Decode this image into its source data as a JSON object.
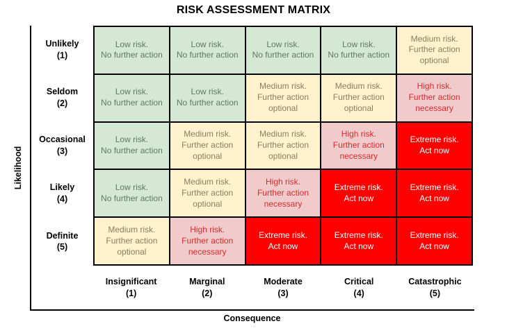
{
  "title": "RISK ASSESSMENT MATRIX",
  "axes": {
    "y_label": "Likelihood",
    "x_label": "Consequence"
  },
  "rows": [
    {
      "label": "Unlikely",
      "level": "(1)"
    },
    {
      "label": "Seldom",
      "level": "(2)"
    },
    {
      "label": "Occasional",
      "level": "(3)"
    },
    {
      "label": "Likely",
      "level": "(4)"
    },
    {
      "label": "Definite",
      "level": "(5)"
    }
  ],
  "columns": [
    {
      "label": "Insignificant",
      "level": "(1)"
    },
    {
      "label": "Marginal",
      "level": "(2)"
    },
    {
      "label": "Moderate",
      "level": "(3)"
    },
    {
      "label": "Critical",
      "level": "(4)"
    },
    {
      "label": "Catastrophic",
      "level": "(5)"
    }
  ],
  "risk_levels": {
    "low": {
      "text": "Low risk.\nNo further action",
      "bg": "#d5e8d4",
      "text_color": "#5e7a5e"
    },
    "medium": {
      "text": "Medium risk.\nFurther action\noptional",
      "bg": "#fff2cc",
      "text_color": "#8a7d62"
    },
    "high": {
      "text": "High risk.\nFurther action\nnecessary",
      "bg": "#f1cbcb",
      "text_color": "#d22c2c"
    },
    "extreme": {
      "text": "Extreme risk.\nAct now",
      "bg": "#fe0000",
      "text_color": "#ffffff"
    }
  },
  "matrix": [
    [
      "low",
      "low",
      "low",
      "low",
      "medium"
    ],
    [
      "low",
      "low",
      "medium",
      "medium",
      "high"
    ],
    [
      "low",
      "medium",
      "medium",
      "high",
      "extreme"
    ],
    [
      "low",
      "medium",
      "high",
      "extreme",
      "extreme"
    ],
    [
      "medium",
      "high",
      "extreme",
      "extreme",
      "extreme"
    ]
  ],
  "chart_data": {
    "type": "heatmap",
    "title": "RISK ASSESSMENT MATRIX",
    "xlabel": "Consequence",
    "ylabel": "Likelihood",
    "x_categories": [
      "Insignificant (1)",
      "Marginal (2)",
      "Moderate (3)",
      "Critical (4)",
      "Catastrophic (5)"
    ],
    "y_categories": [
      "Unlikely (1)",
      "Seldom (2)",
      "Occasional (3)",
      "Likely (4)",
      "Definite (5)"
    ],
    "values": [
      [
        "low",
        "low",
        "low",
        "low",
        "medium"
      ],
      [
        "low",
        "low",
        "medium",
        "medium",
        "high"
      ],
      [
        "low",
        "medium",
        "medium",
        "high",
        "extreme"
      ],
      [
        "low",
        "medium",
        "high",
        "extreme",
        "extreme"
      ],
      [
        "medium",
        "high",
        "extreme",
        "extreme",
        "extreme"
      ]
    ],
    "value_labels": {
      "low": "Low risk. No further action",
      "medium": "Medium risk. Further action optional",
      "high": "High risk. Further action necessary",
      "extreme": "Extreme risk. Act now"
    },
    "cell_colors": {
      "low": "#d5e8d4",
      "medium": "#fff2cc",
      "high": "#f1cbcb",
      "extreme": "#fe0000"
    },
    "grid": true,
    "legend": false
  }
}
